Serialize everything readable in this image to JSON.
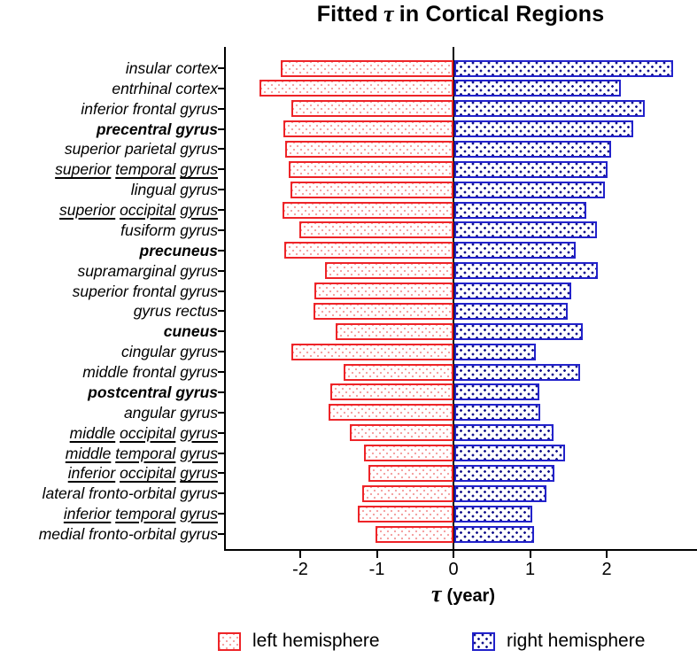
{
  "title": {
    "prefix": "Fitted",
    "tau": "τ",
    "suffix": "in Cortical Regions"
  },
  "x_axis": {
    "label_tau": "τ",
    "label_rest": "(year)",
    "ticks": [
      "-2",
      "-1",
      "0",
      "1",
      "2"
    ],
    "tick_values": [
      -2,
      -1,
      0,
      1,
      2
    ]
  },
  "legend": [
    {
      "label": "left hemisphere",
      "series": "left"
    },
    {
      "label": "right hemisphere",
      "series": "right"
    }
  ],
  "colors": {
    "left_outline": "#ee2428",
    "left_dot": "#f5a3a3",
    "right_outline": "#2222cb",
    "right_dot": "#13138c",
    "axis": "#000000",
    "background": "#ffffff"
  },
  "chart_data": {
    "type": "bar",
    "variant": "diverging-horizontal",
    "title": "Fitted τ in Cortical Regions",
    "xlabel": "τ (year)",
    "xlim": [
      -3.0,
      3.2
    ],
    "grid": false,
    "legend_position": "bottom",
    "categories": [
      "insular cortex",
      "entrhinal cortex",
      "inferior frontal gyrus",
      "precentral gyrus",
      "superior parietal gyrus",
      "superior temporal gyrus",
      "lingual gyrus",
      "superior occipital gyrus",
      "fusiform gyrus",
      "precuneus",
      "supramarginal gyrus",
      "superior frontal gyrus",
      "gyrus rectus",
      "cuneus",
      "cingular gyrus",
      "middle frontal gyrus",
      "postcentral gyrus",
      "angular gyrus",
      "middle occipital gyrus",
      "middle temporal gyrus",
      "inferior occipital gyrus",
      "lateral fronto-orbital gyrus",
      "inferior temporal gyrus",
      "medial fronto-orbital gyrus"
    ],
    "category_emphasis": [
      "italic",
      "italic",
      "italic",
      "bold",
      "italic",
      "underline",
      "italic",
      "underline",
      "italic",
      "bold",
      "italic",
      "italic",
      "italic",
      "bold",
      "italic",
      "italic",
      "bold",
      "italic",
      "underline",
      "underline",
      "underline",
      "italic",
      "underline",
      "italic"
    ],
    "series": [
      {
        "name": "left hemisphere",
        "values": [
          -2.25,
          -2.53,
          -2.12,
          -2.22,
          -2.2,
          -2.15,
          -2.13,
          -2.23,
          -2.01,
          -2.21,
          -1.68,
          -1.81,
          -1.83,
          -1.54,
          -2.12,
          -1.43,
          -1.61,
          -1.63,
          -1.35,
          -1.17,
          -1.11,
          -1.19,
          -1.25,
          -1.02
        ]
      },
      {
        "name": "right hemisphere",
        "values": [
          2.85,
          2.17,
          2.48,
          2.33,
          2.05,
          2.0,
          1.96,
          1.72,
          1.86,
          1.58,
          1.87,
          1.53,
          1.48,
          1.68,
          1.06,
          1.64,
          1.11,
          1.12,
          1.29,
          1.44,
          1.31,
          1.2,
          1.02,
          1.04
        ]
      }
    ]
  }
}
